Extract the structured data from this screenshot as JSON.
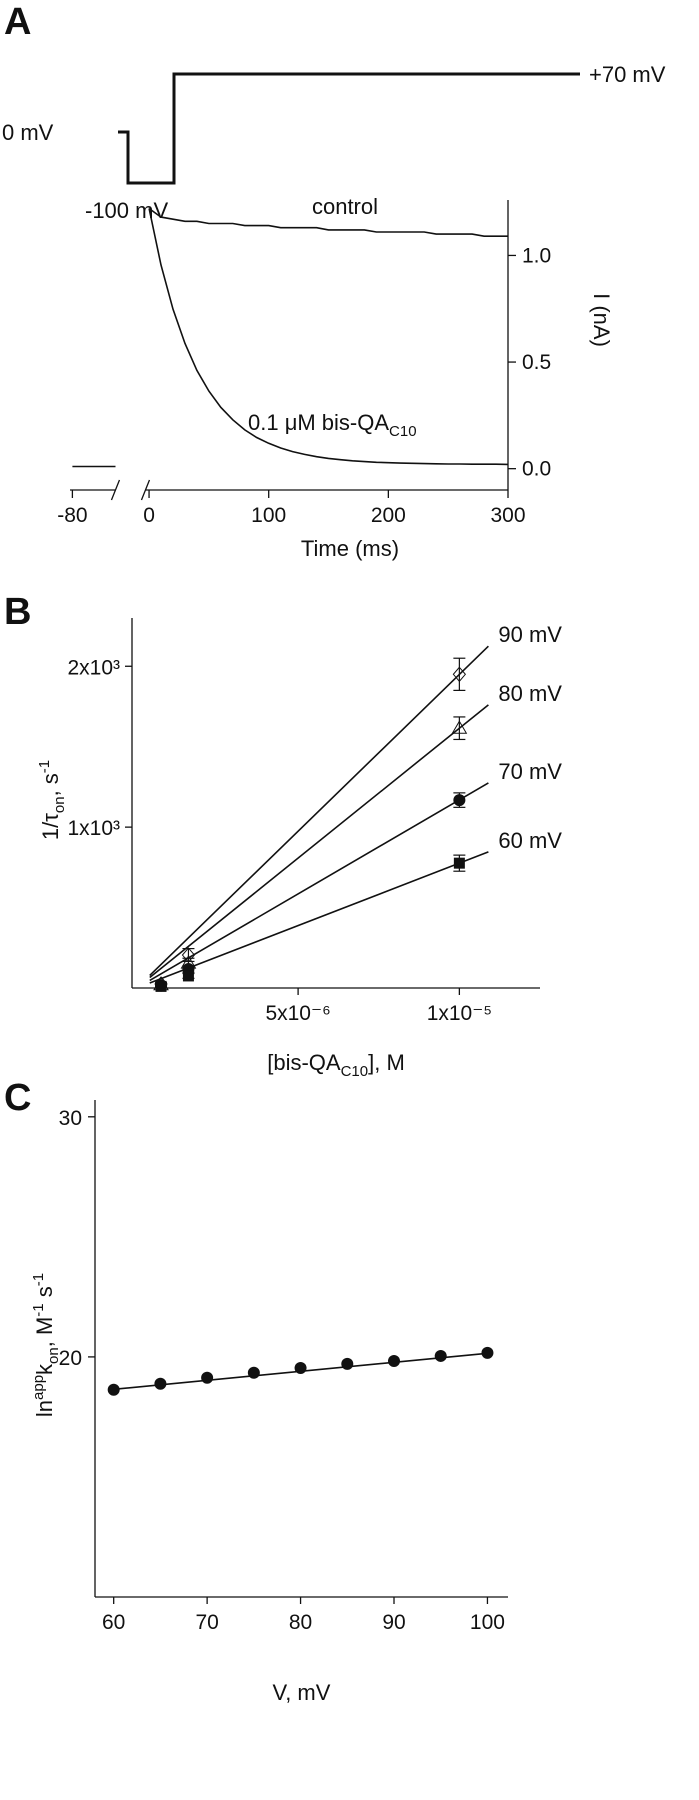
{
  "chart_data": [
    {
      "type": "line",
      "panel_label": "A",
      "protocol_labels": [
        "0 mV",
        "-100 mV",
        "+70 mV"
      ],
      "xlabel": "Time (ms)",
      "ylabel": "I (nA)",
      "xlim": [
        -82,
        300
      ],
      "x_break": [
        -44,
        -3
      ],
      "xticks": [
        -80,
        0,
        100,
        200,
        300
      ],
      "ylim": [
        -0.1,
        1.26
      ],
      "yticks": [
        {
          "value": 0,
          "label": "0.0"
        },
        0.5,
        {
          "value": 1,
          "label": "1.0"
        }
      ],
      "y_axis_side": "right",
      "prepulse": {
        "x": [
          -80,
          -44
        ],
        "values": [
          0.01,
          0.01
        ]
      },
      "x": [
        0,
        10,
        20,
        30,
        40,
        50,
        60,
        70,
        80,
        90,
        100,
        110,
        120,
        130,
        140,
        150,
        160,
        170,
        180,
        190,
        200,
        210,
        220,
        230,
        240,
        250,
        260,
        270,
        280,
        290,
        300
      ],
      "series": [
        {
          "name": "control",
          "color": "#111111",
          "values": [
            1.22,
            1.18,
            1.17,
            1.16,
            1.16,
            1.15,
            1.15,
            1.15,
            1.14,
            1.14,
            1.14,
            1.13,
            1.13,
            1.13,
            1.13,
            1.12,
            1.12,
            1.12,
            1.12,
            1.11,
            1.11,
            1.11,
            1.11,
            1.11,
            1.1,
            1.1,
            1.1,
            1.1,
            1.09,
            1.09,
            1.09
          ]
        },
        {
          "name": "0.1 μM bis-QA",
          "name_subscript": "C10",
          "color": "#111111",
          "values": [
            1.22,
            0.955,
            0.748,
            0.587,
            0.461,
            0.364,
            0.288,
            0.229,
            0.182,
            0.146,
            0.119,
            0.097,
            0.08,
            0.067,
            0.056,
            0.048,
            0.042,
            0.037,
            0.033,
            0.03,
            0.028,
            0.026,
            0.025,
            0.024,
            0.023,
            0.022,
            0.022,
            0.021,
            0.021,
            0.021,
            0.02
          ]
        }
      ]
    },
    {
      "type": "scatter",
      "panel_label": "B",
      "xlabel": [
        {
          "text": "[bis-QA"
        },
        {
          "text": "C10",
          "script": "sub"
        },
        {
          "text": "], M"
        }
      ],
      "ylabel": [
        {
          "text": "1/τ"
        },
        {
          "text": "on",
          "script": "sub"
        },
        {
          "text": ", s"
        },
        {
          "text": "-1",
          "script": "sup"
        }
      ],
      "xlim": [
        -1.5e-07,
        1.25e-05
      ],
      "xticks": [
        {
          "value": 5e-06,
          "label": "5x10⁻⁶"
        },
        {
          "value": 1e-05,
          "label": "1x10⁻⁵"
        }
      ],
      "ylim": [
        0,
        2300
      ],
      "yticks": [
        {
          "value": 1000,
          "label": "1x10³"
        },
        {
          "value": 2000,
          "label": "2x10³"
        }
      ],
      "x": [
        7.5e-07,
        1.6e-06,
        1e-05
      ],
      "series": [
        {
          "name": "90 mV",
          "color": "#111111",
          "marker": "diamond",
          "values": [
            25,
            205,
            1950
          ],
          "errors": [
            10,
            40,
            100
          ],
          "fit": {
            "x": [
              4e-07,
              1.09e-05
            ],
            "y": [
              78,
              2125
            ]
          }
        },
        {
          "name": "80 mV",
          "color": "#111111",
          "marker": "triangle",
          "values": [
            20,
            155,
            1615
          ],
          "errors": [
            8,
            30,
            70
          ],
          "fit": {
            "x": [
              4e-07,
              1.09e-05
            ],
            "y": [
              65,
              1760
            ]
          }
        },
        {
          "name": "70 mV",
          "color": "#111111",
          "marker": "circle",
          "values": [
            15,
            118,
            1168
          ],
          "errors": [
            6,
            20,
            45
          ],
          "fit": {
            "x": [
              4e-07,
              1.09e-05
            ],
            "y": [
              47,
              1275
            ]
          }
        },
        {
          "name": "60 mV",
          "color": "#111111",
          "marker": "square",
          "values": [
            10,
            75,
            776
          ],
          "errors": [
            5,
            15,
            50
          ],
          "fit": {
            "x": [
              4e-07,
              1.09e-05
            ],
            "y": [
              31,
              846
            ]
          }
        }
      ]
    },
    {
      "type": "scatter",
      "panel_label": "C",
      "xlabel": [
        {
          "text": "V, mV"
        }
      ],
      "ylabel": [
        {
          "text": "ln"
        },
        {
          "text": "app",
          "script": "sup"
        },
        {
          "text": "k"
        },
        {
          "text": "on",
          "script": "sub"
        },
        {
          "text": ", M"
        },
        {
          "text": "-1",
          "script": "sup"
        },
        {
          "text": " s"
        },
        {
          "text": "-1",
          "script": "sup"
        }
      ],
      "xlim": [
        58,
        102.2
      ],
      "xticks": [
        60,
        70,
        80,
        90,
        100
      ],
      "ylim": [
        10,
        30.7
      ],
      "yticks": [
        20,
        30
      ],
      "x": [
        60,
        65,
        70,
        75,
        80,
        85,
        90,
        95,
        100
      ],
      "series": [
        {
          "color": "#111111",
          "marker": "circle",
          "values": [
            18.63,
            18.88,
            19.13,
            19.34,
            19.54,
            19.71,
            19.83,
            20.04,
            20.17
          ],
          "fit": {
            "x": [
              60,
              100
            ],
            "y": [
              18.65,
              20.15
            ]
          }
        }
      ]
    }
  ]
}
